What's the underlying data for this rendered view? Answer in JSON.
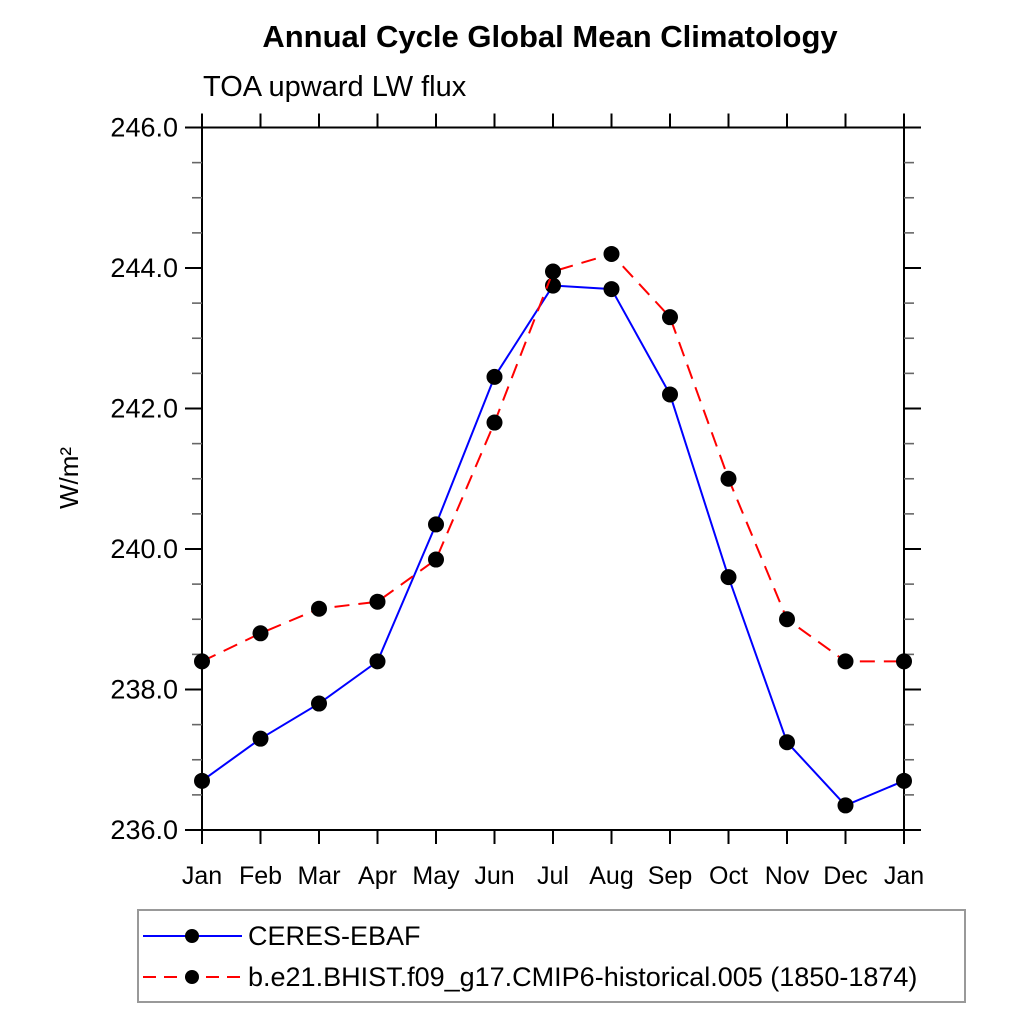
{
  "chart_data": {
    "type": "line",
    "title": "Annual Cycle Global Mean Climatology",
    "subtitle": "TOA upward LW flux",
    "ylabel": "W/m²",
    "xlabel": "",
    "x_categories": [
      "Jan",
      "Feb",
      "Mar",
      "Apr",
      "May",
      "Jun",
      "Jul",
      "Aug",
      "Sep",
      "Oct",
      "Nov",
      "Dec",
      "Jan"
    ],
    "ylim": [
      236.0,
      246.0
    ],
    "y_major_tick_values": [
      236.0,
      238.0,
      240.0,
      242.0,
      244.0,
      246.0
    ],
    "y_major_tick_labels": [
      "236.0",
      "238.0",
      "240.0",
      "242.0",
      "244.0",
      "246.0"
    ],
    "y_minor_tick_step": 0.5,
    "grid": false,
    "frame": "boxed-with-outward-ticks",
    "legend_position": "bottom-left",
    "colors": {
      "axis": "#000000",
      "minor_tick": "#666666",
      "series1_line": "#0000ff",
      "series2_line": "#ff0000",
      "marker": "#000000",
      "legend_border": "#999999"
    },
    "series": [
      {
        "name": "CERES-EBAF",
        "line_style": "solid",
        "line_color": "#0000ff",
        "marker": "filled-circle",
        "marker_color": "#000000",
        "values": [
          236.7,
          237.3,
          237.8,
          238.4,
          240.35,
          242.45,
          243.75,
          243.7,
          242.2,
          239.6,
          237.25,
          236.35,
          236.7
        ]
      },
      {
        "name": "b.e21.BHIST.f09_g17.CMIP6-historical.005 (1850-1874)",
        "line_style": "dashed",
        "line_color": "#ff0000",
        "marker": "filled-circle",
        "marker_color": "#000000",
        "values": [
          238.4,
          238.8,
          239.15,
          239.25,
          239.85,
          241.8,
          243.95,
          244.2,
          243.3,
          241.0,
          239.0,
          238.4,
          238.4
        ]
      }
    ]
  }
}
